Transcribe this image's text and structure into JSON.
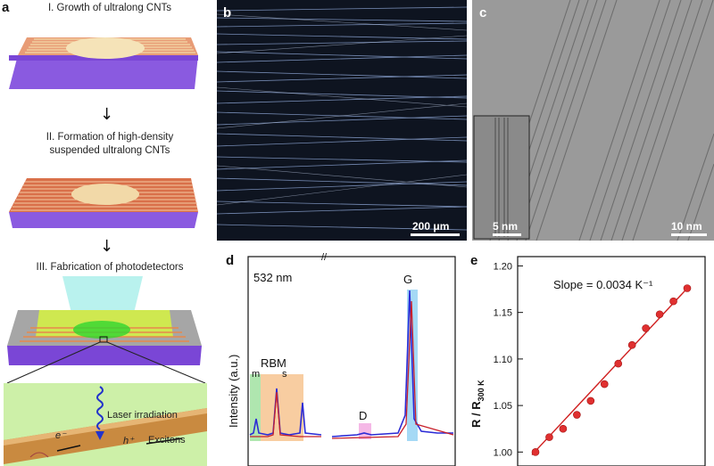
{
  "panel_a": {
    "letter": "a",
    "steps": [
      "I. Growth of ultralong CNTs",
      "II. Formation of high-density",
      "suspended ultralong CNTs",
      "III. Fabrication of photodetectors"
    ],
    "arrow_icon": "down-arrow-icon",
    "inset_labels": [
      "Laser irradiation",
      "e⁻",
      "h⁺",
      "Excitons"
    ]
  },
  "panel_b": {
    "letter": "b",
    "scale_label": "200 μm"
  },
  "panel_c": {
    "letter": "c",
    "scale_label": "10 nm",
    "inset_scale_label": "5 nm"
  },
  "panel_d": {
    "letter": "d",
    "laser_label": "532 nm",
    "ylabel": "Intensity (a.u.)",
    "peak_labels": [
      "RBM",
      "m",
      "s",
      "D",
      "G"
    ],
    "break_mark": "//",
    "colors": {
      "blue": "#2b2bd6",
      "red": "#c8202a",
      "orange_band": "#f6c08a",
      "green_band": "#9be09b",
      "pink_band": "#f3a6e0",
      "blue_band": "#8fcff3"
    }
  },
  "panel_e": {
    "letter": "e",
    "annotation": "Slope = 0.0034 K⁻¹",
    "ylabel_main": "R / R",
    "ylabel_sub": "300 K",
    "yticks": [
      "1.00",
      "1.05",
      "1.10",
      "1.15",
      "1.20"
    ]
  },
  "chart_data": {
    "type": "scatter",
    "annotation": "Slope = 0.0034 K⁻¹",
    "ylabel": "R / R300 K",
    "ylim": [
      0.985,
      1.21
    ],
    "x_index": [
      1,
      2,
      3,
      4,
      5,
      6,
      7,
      8,
      9,
      10,
      11,
      12
    ],
    "values": [
      1.0,
      1.016,
      1.025,
      1.04,
      1.055,
      1.073,
      1.095,
      1.115,
      1.133,
      1.148,
      1.162,
      1.176
    ],
    "fit_line": {
      "y_start": 0.997,
      "y_end": 1.178
    },
    "colors": {
      "points": "#e03030",
      "line": "#d02020"
    }
  }
}
